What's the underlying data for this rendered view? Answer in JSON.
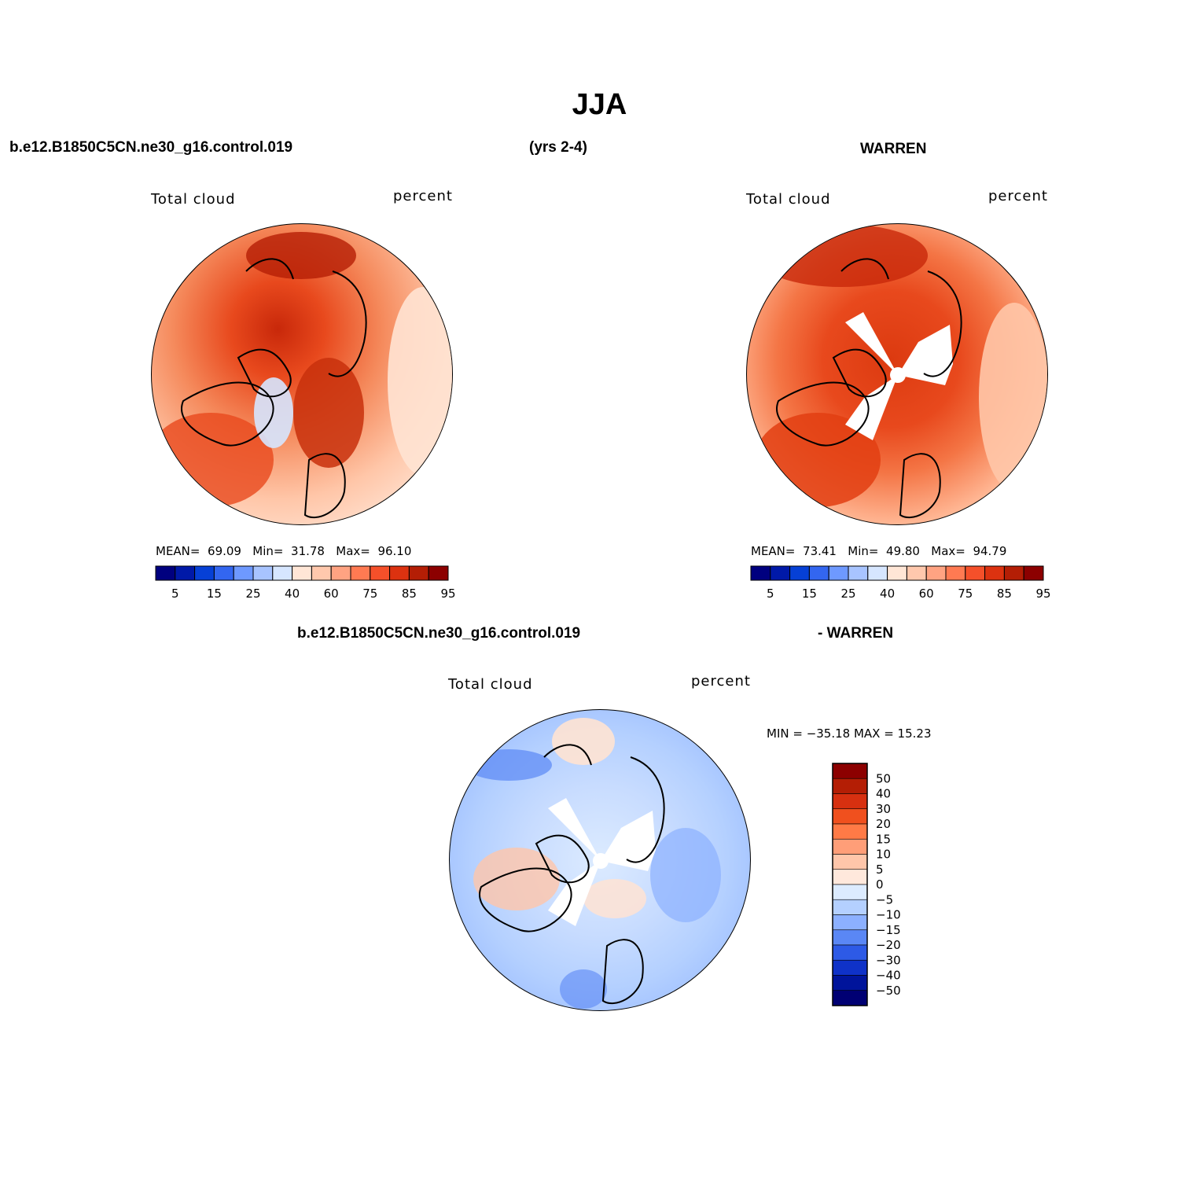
{
  "title": "JJA",
  "header": {
    "case_name": "b.e12.B1850C5CN.ne30_g16.control.019",
    "years": "(yrs 2-4)",
    "obs_name": "WARREN"
  },
  "panels": [
    {
      "variable": "Total cloud",
      "units": "percent",
      "stats": {
        "mean_label": "MEAN=",
        "mean": "69.09",
        "min_label": "Min=",
        "min": "31.78",
        "max_label": "Max=",
        "max": "96.10"
      }
    },
    {
      "variable": "Total cloud",
      "units": "percent",
      "stats": {
        "mean_label": "MEAN=",
        "mean": "73.41",
        "min_label": "Min=",
        "min": "49.80",
        "max_label": "Max=",
        "max": "94.79"
      }
    }
  ],
  "diff": {
    "case_name": "b.e12.B1850C5CN.ne30_g16.control.019",
    "obs_name": "- WARREN",
    "variable": "Total cloud",
    "units": "percent",
    "minmax": "MIN = −35.18 MAX =  15.23"
  },
  "colorbar_horizontal": {
    "labels": [
      "5",
      "15",
      "25",
      "40",
      "60",
      "75",
      "85",
      "95"
    ],
    "colors": [
      "#00007f",
      "#0019a8",
      "#0640d6",
      "#3366f0",
      "#6e99ff",
      "#a8c4ff",
      "#d6e6ff",
      "#ffe6d6",
      "#ffc8ad",
      "#ffa382",
      "#ff7a52",
      "#f5502a",
      "#dc3210",
      "#b41e05",
      "#8c0000"
    ]
  },
  "colorbar_vertical": {
    "labels": [
      "50",
      "40",
      "30",
      "20",
      "15",
      "10",
      "5",
      "0",
      "−5",
      "−10",
      "−15",
      "−20",
      "−30",
      "−40",
      "−50"
    ],
    "colors": [
      "#8c0000",
      "#b41e05",
      "#d73010",
      "#f0501e",
      "#ff7a46",
      "#ff9e78",
      "#ffc6aa",
      "#ffe8dc",
      "#dcebff",
      "#b4d0ff",
      "#8cb0ff",
      "#5a87f5",
      "#2d5ae6",
      "#0f32c8",
      "#00149b",
      "#000073"
    ]
  }
}
